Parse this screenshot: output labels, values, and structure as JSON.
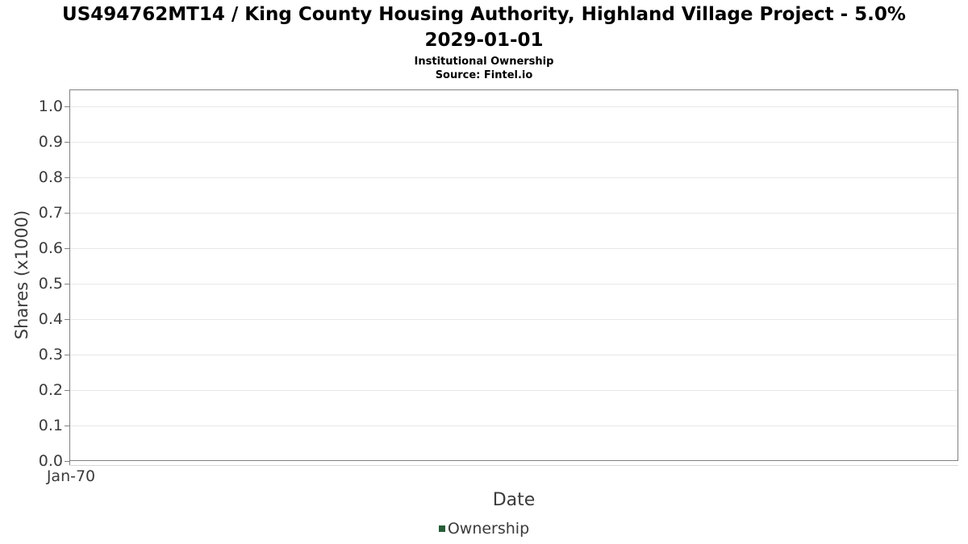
{
  "header": {
    "title_line1": "US494762MT14 / King County Housing Authority, Highland Village Project - 5.0%",
    "title_line2": "2029-01-01",
    "subtitle": "Institutional Ownership",
    "source": "Source: Fintel.io"
  },
  "chart_data": {
    "type": "line",
    "title": "US494762MT14 / King County Housing Authority, Highland Village Project - 5.0% 2029-01-01",
    "subtitle": "Institutional Ownership",
    "source": "Source: Fintel.io",
    "xlabel": "Date",
    "ylabel": "Shares (x1000)",
    "x_tick_labels": [
      "Jan-70"
    ],
    "y_tick_labels": [
      "0.0",
      "0.1",
      "0.2",
      "0.3",
      "0.4",
      "0.5",
      "0.6",
      "0.7",
      "0.8",
      "0.9",
      "1.0"
    ],
    "ylim": [
      0.0,
      1.05
    ],
    "grid": "horizontal",
    "legend_position": "bottom-center",
    "series": [
      {
        "name": "Ownership",
        "color": "#275d38",
        "x": [],
        "values": []
      }
    ]
  },
  "colors": {
    "title": "#000000",
    "axis_text": "#3b3b3b",
    "spine": "#808080",
    "gridline": "#e7e7e7",
    "background": "#ffffff",
    "legend_marker": "#275d38"
  }
}
